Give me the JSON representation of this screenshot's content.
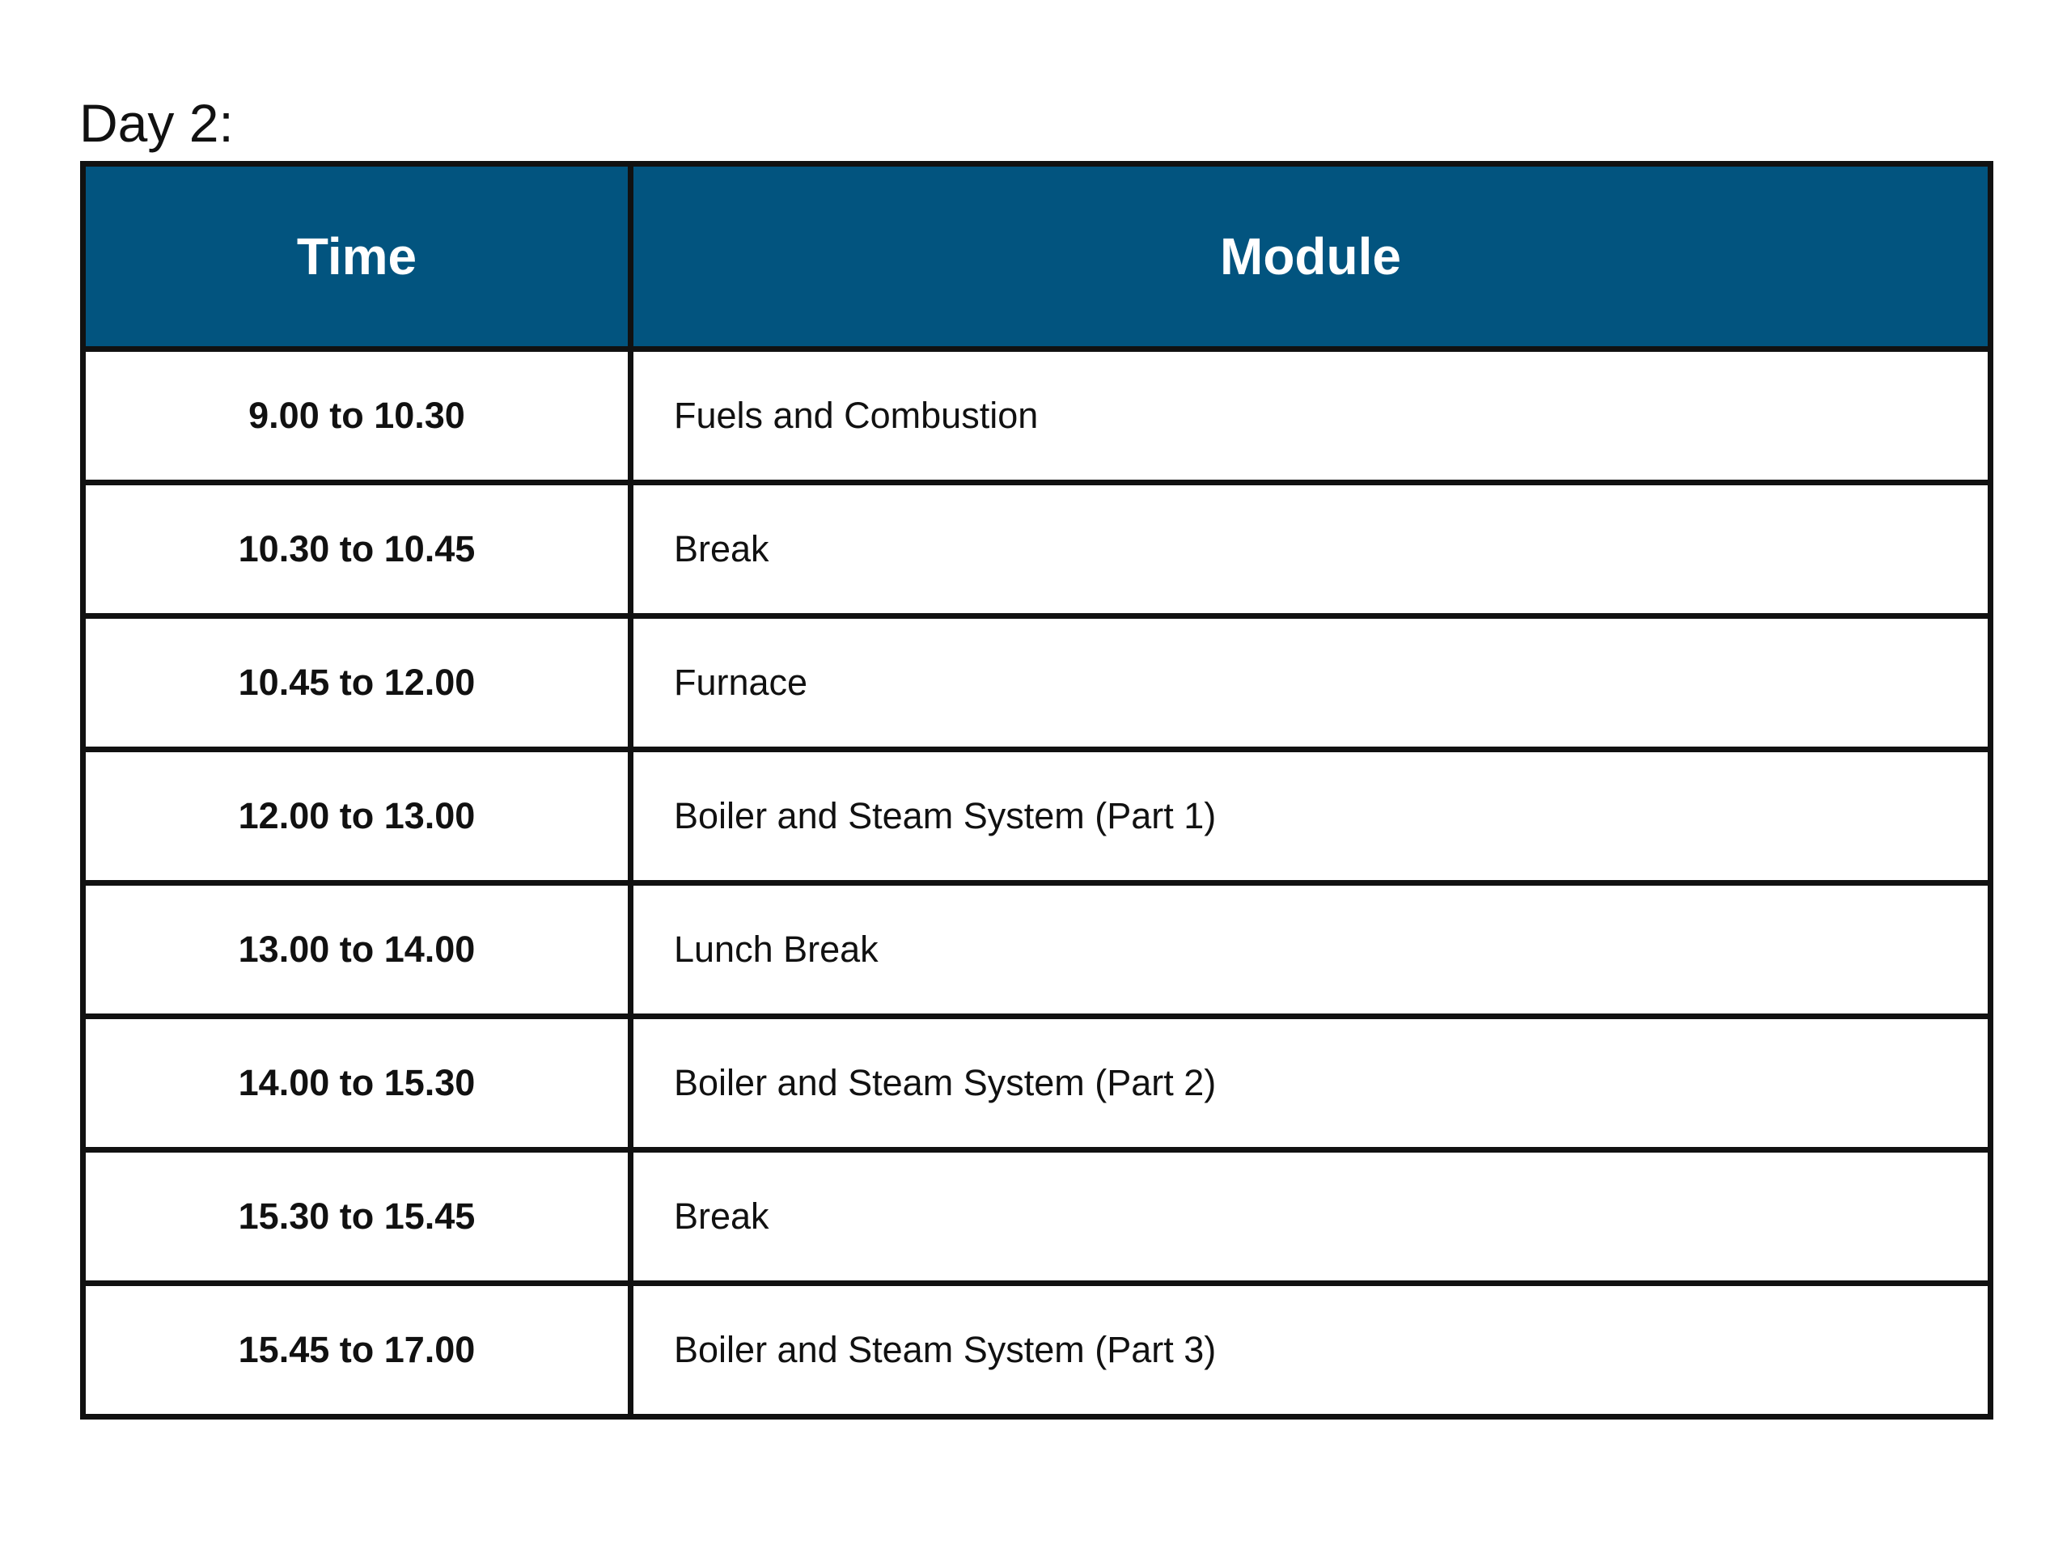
{
  "title": "Day 2:",
  "header_color": "#02547f",
  "columns": [
    "Time",
    "Module"
  ],
  "rows": [
    {
      "time": "9.00 to 10.30",
      "module": "Fuels and Combustion"
    },
    {
      "time": "10.30 to 10.45",
      "module": "Break"
    },
    {
      "time": "10.45 to 12.00",
      "module": "Furnace"
    },
    {
      "time": "12.00 to 13.00",
      "module": "Boiler and Steam System (Part 1)"
    },
    {
      "time": "13.00 to 14.00",
      "module": "Lunch Break"
    },
    {
      "time": "14.00 to 15.30",
      "module": "Boiler and Steam System (Part 2)"
    },
    {
      "time": "15.30 to 15.45",
      "module": "Break"
    },
    {
      "time": "15.45 to 17.00",
      "module": "Boiler and Steam System (Part 3)"
    }
  ]
}
